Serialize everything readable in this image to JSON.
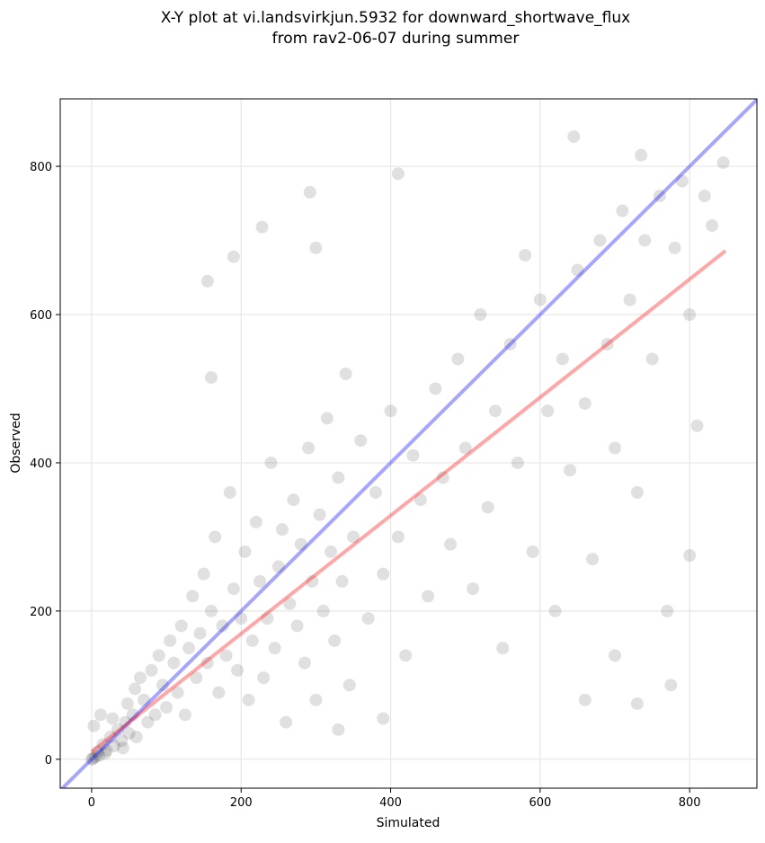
{
  "chart_data": {
    "type": "scatter",
    "title": [
      "X-Y plot at vi.landsvirkjun.5932 for downward_shortwave_flux",
      "from rav2-06-07 during summer"
    ],
    "xlabel": "Simulated",
    "ylabel": "Observed",
    "xlim": [
      -42,
      890
    ],
    "ylim": [
      -39,
      891
    ],
    "xticks": [
      0,
      200,
      400,
      600,
      800
    ],
    "yticks": [
      0,
      200,
      400,
      600,
      800
    ],
    "grid": true,
    "color": "#000000",
    "alpha": 0.12,
    "x": [
      0,
      2,
      5,
      8,
      10,
      15,
      20,
      25,
      30,
      35,
      40,
      45,
      50,
      55,
      60,
      3,
      12,
      18,
      28,
      42,
      48,
      58,
      65,
      70,
      75,
      80,
      85,
      90,
      95,
      100,
      105,
      110,
      115,
      120,
      125,
      130,
      135,
      140,
      145,
      150,
      155,
      160,
      165,
      170,
      175,
      180,
      185,
      190,
      195,
      200,
      205,
      210,
      215,
      220,
      225,
      230,
      235,
      240,
      245,
      250,
      255,
      260,
      265,
      270,
      275,
      280,
      285,
      290,
      295,
      300,
      305,
      310,
      315,
      320,
      325,
      330,
      335,
      340,
      345,
      350,
      360,
      370,
      380,
      390,
      400,
      410,
      420,
      430,
      440,
      450,
      460,
      470,
      480,
      490,
      500,
      510,
      520,
      530,
      540,
      550,
      560,
      570,
      580,
      590,
      600,
      610,
      620,
      630,
      640,
      650,
      660,
      670,
      680,
      690,
      700,
      710,
      720,
      730,
      740,
      750,
      760,
      770,
      780,
      790,
      800,
      810,
      820,
      830,
      845,
      292,
      410,
      155,
      190,
      228,
      645,
      735,
      775,
      730,
      660,
      390,
      330,
      700,
      800,
      160,
      300
    ],
    "values": [
      0,
      1,
      3,
      10,
      5,
      20,
      12,
      30,
      18,
      40,
      25,
      50,
      35,
      60,
      30,
      45,
      60,
      8,
      55,
      15,
      75,
      95,
      110,
      80,
      50,
      120,
      60,
      140,
      100,
      70,
      160,
      130,
      90,
      180,
      60,
      150,
      220,
      110,
      170,
      250,
      130,
      200,
      300,
      90,
      180,
      140,
      360,
      230,
      120,
      190,
      280,
      80,
      160,
      320,
      240,
      110,
      190,
      400,
      150,
      260,
      310,
      50,
      210,
      350,
      180,
      290,
      130,
      420,
      240,
      80,
      330,
      200,
      460,
      280,
      160,
      380,
      240,
      520,
      100,
      300,
      430,
      190,
      360,
      250,
      470,
      300,
      140,
      410,
      350,
      220,
      500,
      380,
      290,
      540,
      420,
      230,
      600,
      340,
      470,
      150,
      560,
      400,
      680,
      280,
      620,
      470,
      200,
      540,
      390,
      660,
      480,
      270,
      700,
      560,
      420,
      740,
      620,
      360,
      700,
      540,
      760,
      200,
      690,
      780,
      600,
      450,
      760,
      720,
      805,
      765,
      790,
      645,
      678,
      718,
      840,
      815,
      100,
      75,
      80,
      55,
      40,
      140,
      275,
      515,
      690
    ],
    "lines": [
      {
        "color": "#0000ff",
        "x": [
          -42,
          890
        ],
        "values": [
          -42,
          890
        ]
      },
      {
        "color": "#ff0000",
        "x": [
          0,
          848
        ],
        "values": [
          10,
          686
        ]
      }
    ]
  }
}
